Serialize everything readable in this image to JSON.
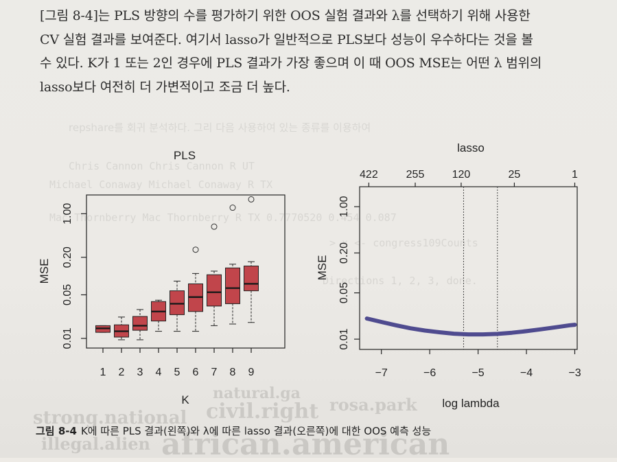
{
  "paragraph": {
    "lines": [
      "[그림 8-4]는 PLS 방향의 수를 평가하기 위한 OOS 실험 결과와 λ를 선택하기 위해 사용한",
      "CV 실험 결과를 보여준다. 여기서 lasso가 일반적으로 PLS보다 성능이 우수하다는 것을 볼",
      "수 있다. K가 1 또는 2인 경우에 PLS 결과가 가장 좋으며 이 때 OOS MSE는 어떤 λ 범위의",
      "lasso보다 여전히 더 가변적이고 조금 더 높다."
    ]
  },
  "caption": {
    "number": "그림 8-4",
    "text": "K에 따른 PLS 결과(왼쪽)와 λ에 따른 lasso 결과(오른쪽)에 대한 OOS 예측 성능"
  },
  "bleed_through": {
    "line1": "repshare를 회귀 분석하다. 그리 다음 사용하여 있는 종류를 이용하여",
    "line2": "Chris Cannon    Chris Cannon    R    UT",
    "line3": "Michael Conaway Michael Conaway  R    TX",
    "line4": "Mac Thornberry  Mac Thornberry   R    TX   0.7770520 0.454  0.087",
    "line5": "> x <- congress109Counts",
    "line6": "Directions 1, 2, 3, done.",
    "line7": "civil.right",
    "line8": "rosa.park",
    "line9": "african.american",
    "line10": "illegal.alien",
    "line11": "strong.national",
    "line12": "natural.ga"
  },
  "chart_data": [
    {
      "type": "boxplot",
      "title": "PLS",
      "xlabel": "K",
      "ylabel": "MSE",
      "y_scale": "log",
      "ylim": [
        0.007,
        2.0
      ],
      "y_ticks": [
        "0.01",
        "0.05",
        "0.20",
        "1.00"
      ],
      "y_tick_values": [
        0.01,
        0.05,
        0.2,
        1.0
      ],
      "categories": [
        "1",
        "2",
        "3",
        "4",
        "5",
        "6",
        "7",
        "8",
        "9"
      ],
      "box_color": "#c1454b",
      "boxes": [
        {
          "k": "1",
          "min": 0.0125,
          "q1": 0.0125,
          "median": 0.0145,
          "q3": 0.016,
          "max": 0.016,
          "outliers": []
        },
        {
          "k": "2",
          "min": 0.0095,
          "q1": 0.0105,
          "median": 0.013,
          "q3": 0.0165,
          "max": 0.022,
          "outliers": []
        },
        {
          "k": "3",
          "min": 0.0095,
          "q1": 0.0135,
          "median": 0.016,
          "q3": 0.0225,
          "max": 0.029,
          "outliers": []
        },
        {
          "k": "4",
          "min": 0.013,
          "q1": 0.019,
          "median": 0.027,
          "q3": 0.039,
          "max": 0.041,
          "outliers": []
        },
        {
          "k": "5",
          "min": 0.013,
          "q1": 0.024,
          "median": 0.036,
          "q3": 0.058,
          "max": 0.083,
          "outliers": []
        },
        {
          "k": "6",
          "min": 0.013,
          "q1": 0.027,
          "median": 0.046,
          "q3": 0.075,
          "max": 0.11,
          "outliers": [
            0.265
          ]
        },
        {
          "k": "7",
          "min": 0.016,
          "q1": 0.033,
          "median": 0.055,
          "q3": 0.105,
          "max": 0.12,
          "outliers": [
            0.62
          ]
        },
        {
          "k": "8",
          "min": 0.017,
          "q1": 0.036,
          "median": 0.064,
          "q3": 0.135,
          "max": 0.155,
          "outliers": [
            1.25
          ]
        },
        {
          "k": "9",
          "min": 0.018,
          "q1": 0.058,
          "median": 0.075,
          "q3": 0.145,
          "max": 0.17,
          "outliers": [
            1.7
          ]
        }
      ]
    },
    {
      "type": "line",
      "title": "lasso",
      "xlabel": "log lambda",
      "ylabel": "MSE",
      "y_scale": "log",
      "ylim": [
        0.007,
        2.0
      ],
      "y_ticks": [
        "0.01",
        "0.05",
        "0.20",
        "1.00"
      ],
      "y_tick_values": [
        0.01,
        0.05,
        0.2,
        1.0
      ],
      "xlim": [
        -7.45,
        -2.95
      ],
      "x_ticks": [
        "−7",
        "−6",
        "−5",
        "−4",
        "−3"
      ],
      "x_tick_values": [
        -7,
        -6,
        -5,
        -4,
        -3
      ],
      "top_ticks": [
        "422",
        "255",
        "120",
        "25",
        "1"
      ],
      "top_tick_values": [
        -7.26,
        -6.3,
        -5.35,
        -4.25,
        -3.0
      ],
      "vlines": [
        -5.3,
        -4.6
      ],
      "line_color": "#4f4b8f",
      "series": [
        {
          "x": [
            -7.3,
            -7.0,
            -6.7,
            -6.4,
            -6.1,
            -5.8,
            -5.5,
            -5.2,
            -4.9,
            -4.6,
            -4.3,
            -4.0,
            -3.7,
            -3.4,
            -3.1,
            -3.0
          ],
          "y": [
            0.0205,
            0.0182,
            0.0162,
            0.0146,
            0.0135,
            0.0127,
            0.0121,
            0.0118,
            0.0118,
            0.012,
            0.0125,
            0.0132,
            0.0141,
            0.0151,
            0.0162,
            0.0165
          ]
        }
      ]
    }
  ]
}
